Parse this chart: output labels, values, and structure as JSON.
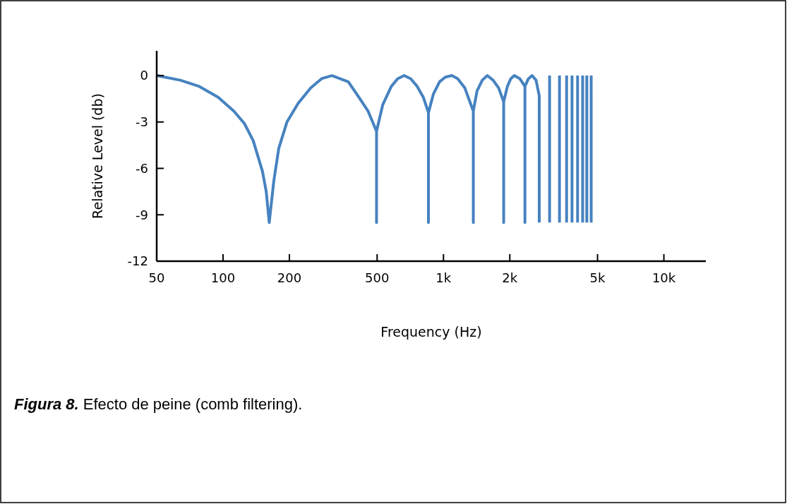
{
  "chart_data": {
    "type": "line",
    "xlabel": "Frequency (Hz)",
    "ylabel": "Relative Level (db)",
    "log": "x",
    "xlim": [
      50,
      15500
    ],
    "xticks": [
      50,
      100,
      200,
      500,
      {
        "value": 1000,
        "label": "1k"
      },
      {
        "value": 2000,
        "label": "2k"
      },
      {
        "value": 5000,
        "label": "5k"
      },
      {
        "value": 10000,
        "label": "10k"
      }
    ],
    "ylim": [
      -12,
      1.6
    ],
    "yticks": [
      0,
      -3,
      -6,
      -9,
      -12
    ],
    "grid": false,
    "marker": "none",
    "line_style": "solid",
    "series": [
      {
        "color": "#4682c0",
        "x": [
          50,
          64,
          78,
          95,
          112,
          125,
          137,
          151,
          157,
          162,
          170,
          179,
          195,
          219,
          250,
          280,
          312,
          370,
          413,
          455,
          497,
          497,
          497,
          530,
          580,
          620,
          663,
          710,
          760,
          810,
          855,
          855,
          855,
          900,
          960,
          1020,
          1093,
          1160,
          1250,
          1366,
          1366,
          1366,
          1420,
          1500,
          1581,
          1680,
          1780,
          1876,
          1876,
          1876,
          1950,
          2020,
          2097,
          2220,
          2342,
          2342,
          2342,
          2430,
          2525,
          2630,
          2720,
          2720,
          null,
          3030,
          3030,
          null,
          3360,
          3360,
          null,
          3620,
          3620,
          null,
          3830,
          3830,
          null,
          4060,
          4060,
          null,
          4280,
          4280,
          null,
          4470,
          4470,
          null,
          4680,
          4680
        ],
        "values": [
          0,
          -0.3,
          -0.7,
          -1.4,
          -2.3,
          -3.1,
          -4.2,
          -6.2,
          -7.5,
          -9.5,
          -6.8,
          -4.7,
          -3,
          -1.8,
          -0.8,
          -0.2,
          0,
          -0.4,
          -1.4,
          -2.3,
          -3.6,
          -9.5,
          -3.6,
          -1.9,
          -0.7,
          -0.2,
          0,
          -0.2,
          -0.7,
          -1.4,
          -2.4,
          -9.5,
          -2.4,
          -1.2,
          -0.4,
          -0.1,
          0,
          -0.2,
          -0.8,
          -2.3,
          -9.5,
          -2.3,
          -1,
          -0.3,
          0,
          -0.3,
          -0.8,
          -1.7,
          -9.5,
          -1.7,
          -0.7,
          -0.2,
          0,
          -0.2,
          -0.7,
          -9.5,
          -0.7,
          -0.2,
          0,
          -0.3,
          -1.3,
          -9.5,
          null,
          0,
          -9.5,
          null,
          0,
          -9.5,
          null,
          0,
          -9.5,
          null,
          0,
          -9.5,
          null,
          0,
          -9.5,
          null,
          0,
          -9.5,
          null,
          0,
          -9.5,
          null,
          0,
          -9.5
        ]
      }
    ],
    "annotations": [
      "Figura 8. Efecto de peine (comb filtering)."
    ]
  }
}
